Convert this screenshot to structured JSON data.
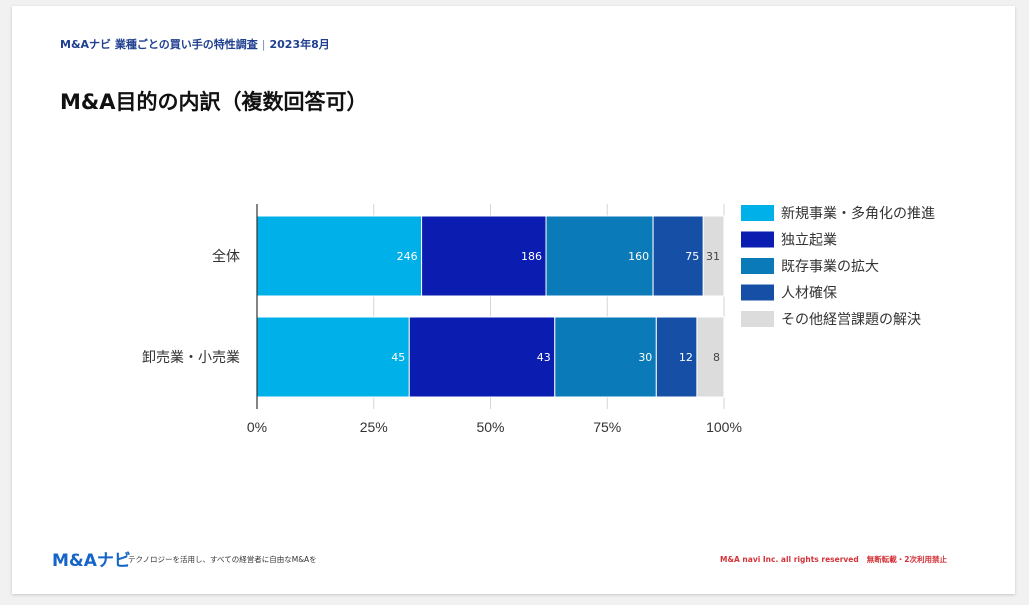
{
  "header": {
    "series_name": "M&Aナビ 業種ごとの買い手の特性調査",
    "date": "2023年8月"
  },
  "title": "M&A目的の内訳（複数回答可）",
  "chart_data": {
    "type": "bar",
    "orientation": "horizontal",
    "stacked": "percent",
    "categories": [
      "全体",
      "卸売業・小売業"
    ],
    "series": [
      {
        "name": "新規事業・多角化の推進",
        "values": [
          246,
          45
        ],
        "color": "#00b0e8"
      },
      {
        "name": "独立起業",
        "values": [
          186,
          43
        ],
        "color": "#0a1db0"
      },
      {
        "name": "既存事業の拡大",
        "values": [
          160,
          30
        ],
        "color": "#0a7ab8"
      },
      {
        "name": "人材確保",
        "values": [
          75,
          12
        ],
        "color": "#1550a6"
      },
      {
        "name": "その他経営課題の解決",
        "values": [
          31,
          8
        ],
        "color": "#dcdcdc"
      }
    ],
    "x_ticks": [
      "0%",
      "25%",
      "50%",
      "75%",
      "100%"
    ],
    "xlim": [
      0,
      100
    ],
    "grid": true,
    "legend": "right"
  },
  "footer": {
    "logo": "M&Aナビ",
    "tagline": "テクノロジーを活用し、すべての経営者に自由なM&Aを",
    "rights": "M&A navi Inc. all rights reserved",
    "notice": "無断転載・2次利用禁止"
  }
}
